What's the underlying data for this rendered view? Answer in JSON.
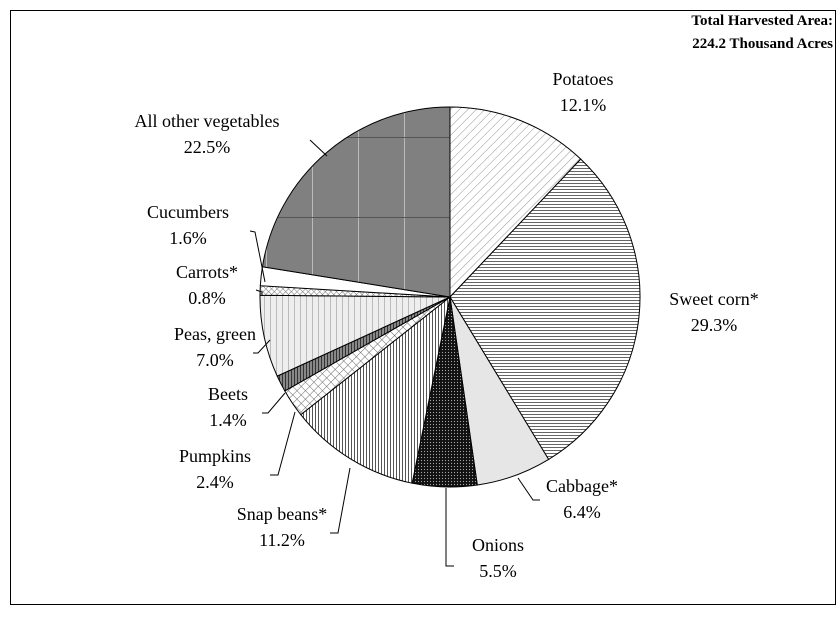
{
  "chart_data": {
    "type": "pie",
    "annotation": [
      "Total Harvested Area:",
      "224.2 Thousand Acres"
    ],
    "categories": [
      "Potatoes",
      "Sweet corn*",
      "Cabbage*",
      "Onions",
      "Snap beans*",
      "Pumpkins",
      "Beets",
      "Peas, green",
      "Carrots*",
      "Cucumbers",
      "All other vegetables"
    ],
    "values": [
      12.1,
      29.3,
      6.4,
      5.5,
      11.2,
      2.4,
      1.4,
      7.0,
      0.8,
      1.6,
      22.5
    ],
    "value_labels": [
      "12.1%",
      "29.3%",
      "6.4%",
      "5.5%",
      "11.2%",
      "2.4%",
      "1.4%",
      "7.0%",
      "0.8%",
      "1.6%",
      "22.5%"
    ]
  }
}
